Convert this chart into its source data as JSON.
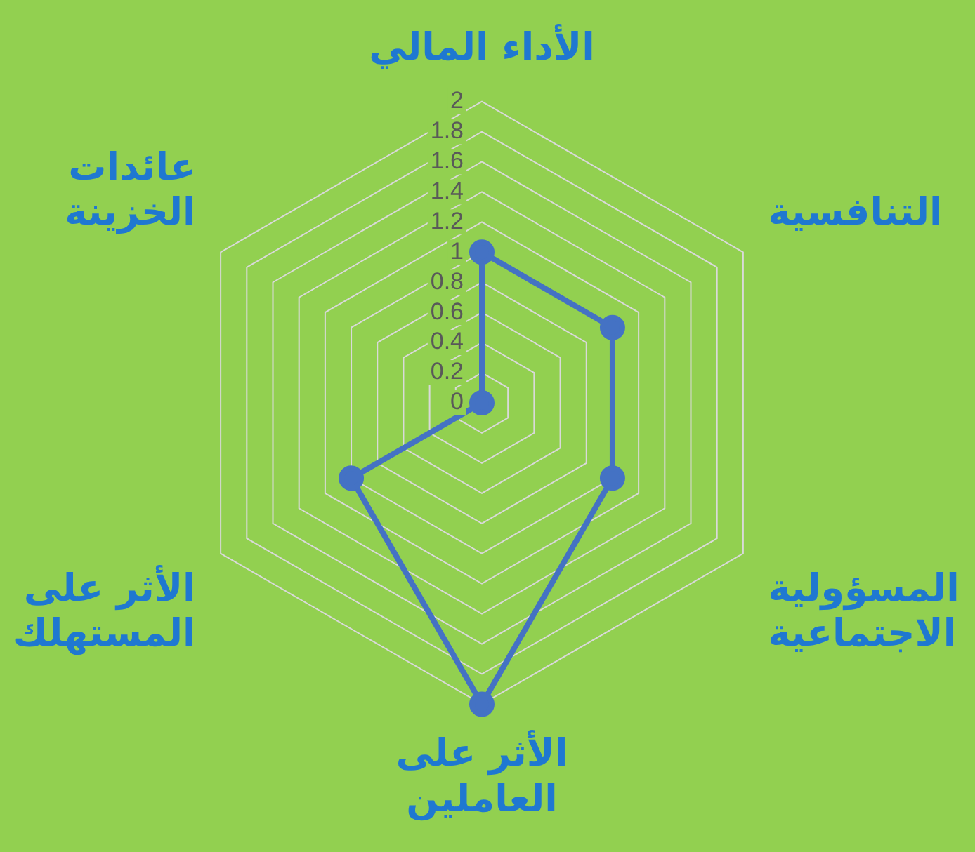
{
  "chart_data": {
    "type": "radar",
    "categories": [
      "الأداء المالي",
      "التنافسية",
      "المسؤولية\nالاجتماعية",
      "الأثر على\nالعاملين",
      "الأثر على\nالمستهلك",
      "عائدات\nالخزينة"
    ],
    "series": [
      {
        "color": "#4472c4",
        "values": [
          1,
          1,
          1,
          2,
          1,
          0
        ]
      }
    ],
    "ylim": [
      0,
      2
    ],
    "yticks": [
      0,
      0.2,
      0.4,
      0.6,
      0.8,
      1,
      1.2,
      1.4,
      1.6,
      1.8,
      2
    ],
    "grid": true,
    "legend": false,
    "marker": "circle",
    "line_style": "solid"
  }
}
